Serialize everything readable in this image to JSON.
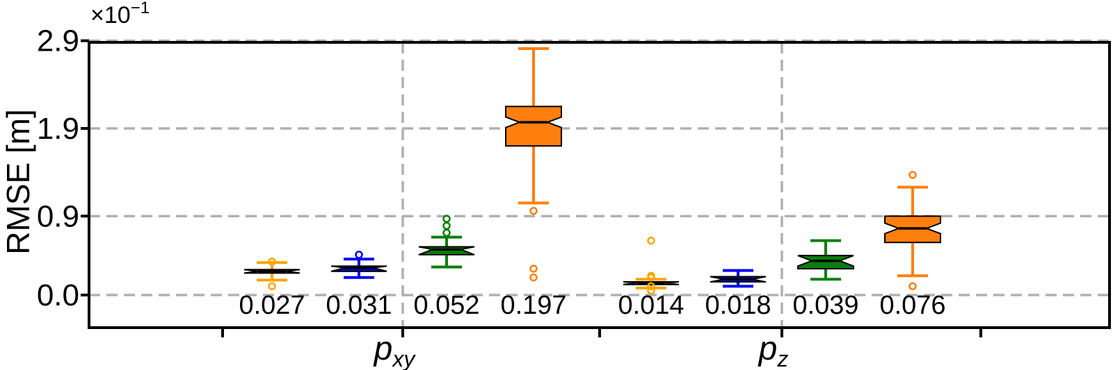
{
  "chart_data": {
    "type": "box",
    "title": "",
    "xlabel": "",
    "ylabel": "RMSE [m]",
    "y_scale_label": "×10",
    "y_scale_exponent": "−1",
    "yticks": [
      "0.0",
      "0.9",
      "1.9",
      "2.9"
    ],
    "ytick_values": [
      0.0,
      0.9,
      1.9,
      2.9
    ],
    "ylim": [
      -0.35,
      2.9
    ],
    "grid": "dashed",
    "notched": true,
    "categories": [
      {
        "name": "p",
        "subscript": "xy"
      },
      {
        "name": "p",
        "subscript": "z"
      }
    ],
    "boxes": [
      {
        "category": 0,
        "color": "#FFA500",
        "whislo": 0.17,
        "q1": 0.25,
        "med": 0.27,
        "q3": 0.29,
        "whishi": 0.37,
        "fliers": [
          0.1,
          0.38
        ],
        "median_label": "0.027"
      },
      {
        "category": 0,
        "color": "#0000EE",
        "whislo": 0.2,
        "q1": 0.27,
        "med": 0.31,
        "q3": 0.33,
        "whishi": 0.41,
        "fliers": [
          0.46
        ],
        "median_label": "0.031"
      },
      {
        "category": 0,
        "color": "#0A7D0A",
        "whislo": 0.32,
        "q1": 0.46,
        "med": 0.52,
        "q3": 0.55,
        "whishi": 0.66,
        "fliers": [
          0.71,
          0.79,
          0.87
        ],
        "median_label": "0.052"
      },
      {
        "category": 0,
        "color": "#FF7F0E",
        "whislo": 1.05,
        "q1": 1.7,
        "med": 1.97,
        "q3": 2.15,
        "whishi": 2.81,
        "fliers": [
          0.2,
          0.3,
          0.96
        ],
        "median_label": "0.197"
      },
      {
        "category": 1,
        "color": "#FFA500",
        "whislo": 0.08,
        "q1": 0.12,
        "med": 0.14,
        "q3": 0.15,
        "whishi": 0.18,
        "fliers": [
          0.05,
          0.1,
          0.2,
          0.22,
          0.62
        ],
        "median_label": "0.014"
      },
      {
        "category": 1,
        "color": "#0000EE",
        "whislo": 0.1,
        "q1": 0.15,
        "med": 0.18,
        "q3": 0.21,
        "whishi": 0.28,
        "fliers": [],
        "median_label": "0.018"
      },
      {
        "category": 1,
        "color": "#0A7D0A",
        "whislo": 0.18,
        "q1": 0.3,
        "med": 0.39,
        "q3": 0.45,
        "whishi": 0.62,
        "fliers": [],
        "median_label": "0.039"
      },
      {
        "category": 1,
        "color": "#FF7F0E",
        "whislo": 0.22,
        "q1": 0.6,
        "med": 0.76,
        "q3": 0.9,
        "whishi": 1.23,
        "fliers": [
          0.1,
          1.37
        ],
        "median_label": "0.076"
      }
    ]
  }
}
